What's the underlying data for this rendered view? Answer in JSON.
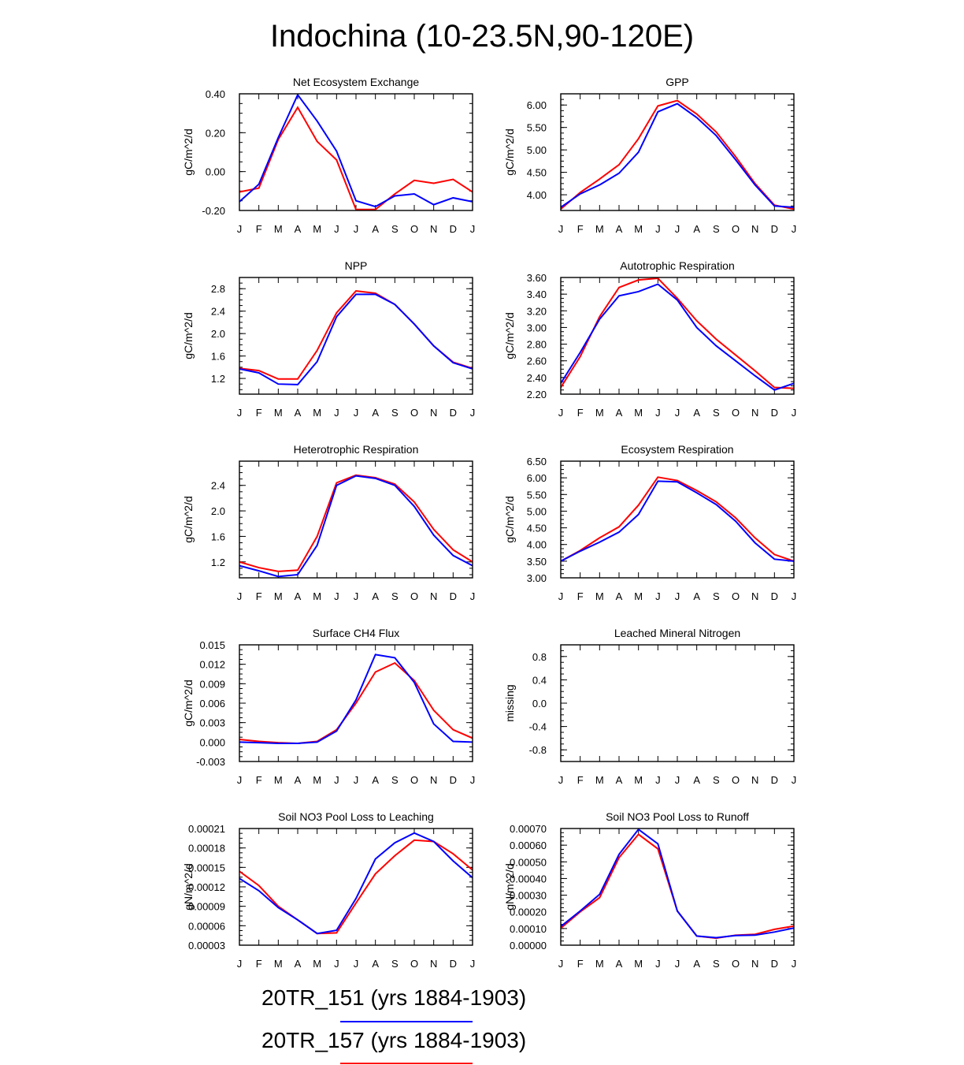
{
  "figure_title": "Indochina (10-23.5N,90-120E)",
  "colors": {
    "blue": "#0000ff",
    "red": "#ff0000"
  },
  "legend": [
    {
      "label": "20TR_151 (yrs 1884-1903)",
      "color": "#0000ff"
    },
    {
      "label": "20TR_157 (yrs 1884-1903)",
      "color": "#ff0000"
    }
  ],
  "chart_data": [
    {
      "type": "line",
      "title": "Net Ecosystem Exchange",
      "ylabel": "gC/m^2/d",
      "categories": [
        "J",
        "F",
        "M",
        "A",
        "M",
        "J",
        "J",
        "A",
        "S",
        "O",
        "N",
        "D",
        "J"
      ],
      "ylim": [
        -0.2,
        0.4
      ],
      "yticks": [
        "-0.20",
        "0.00",
        "0.20",
        "0.40"
      ],
      "series": [
        {
          "name": "20TR_151 (yrs 1884-1903)",
          "color": "#0000ff",
          "values": [
            -0.155,
            -0.065,
            0.175,
            0.395,
            0.26,
            0.105,
            -0.15,
            -0.18,
            -0.125,
            -0.115,
            -0.17,
            -0.135,
            -0.155
          ]
        },
        {
          "name": "20TR_157 (yrs 1884-1903)",
          "color": "#ff0000",
          "values": [
            -0.105,
            -0.085,
            0.165,
            0.33,
            0.155,
            0.06,
            -0.195,
            -0.195,
            -0.115,
            -0.045,
            -0.06,
            -0.04,
            -0.105
          ]
        }
      ]
    },
    {
      "type": "line",
      "title": "GPP",
      "ylabel": "gC/m^2/d",
      "categories": [
        "J",
        "F",
        "M",
        "A",
        "M",
        "J",
        "J",
        "A",
        "S",
        "O",
        "N",
        "D",
        "J"
      ],
      "ylim": [
        3.65,
        6.25
      ],
      "yticks": [
        "4.00",
        "4.50",
        "5.00",
        "5.50",
        "6.00"
      ],
      "series": [
        {
          "name": "20TR_151 (yrs 1884-1903)",
          "color": "#0000ff",
          "values": [
            3.72,
            4.02,
            4.22,
            4.48,
            4.95,
            5.85,
            6.03,
            5.72,
            5.32,
            4.78,
            4.22,
            3.75,
            3.72
          ]
        },
        {
          "name": "20TR_157 (yrs 1884-1903)",
          "color": "#ff0000",
          "values": [
            3.68,
            4.05,
            4.35,
            4.67,
            5.25,
            5.98,
            6.1,
            5.8,
            5.4,
            4.85,
            4.25,
            3.77,
            3.68
          ]
        }
      ]
    },
    {
      "type": "line",
      "title": "NPP",
      "ylabel": "gC/m^2/d",
      "categories": [
        "J",
        "F",
        "M",
        "A",
        "M",
        "J",
        "J",
        "A",
        "S",
        "O",
        "N",
        "D",
        "J"
      ],
      "ylim": [
        0.92,
        3.0
      ],
      "yticks": [
        "1.2",
        "1.6",
        "2.0",
        "2.4",
        "2.8"
      ],
      "series": [
        {
          "name": "20TR_151 (yrs 1884-1903)",
          "color": "#0000ff",
          "values": [
            1.37,
            1.3,
            1.1,
            1.09,
            1.5,
            2.3,
            2.7,
            2.7,
            2.52,
            2.17,
            1.78,
            1.48,
            1.37
          ]
        },
        {
          "name": "20TR_157 (yrs 1884-1903)",
          "color": "#ff0000",
          "values": [
            1.38,
            1.34,
            1.19,
            1.19,
            1.7,
            2.37,
            2.76,
            2.72,
            2.52,
            2.17,
            1.78,
            1.49,
            1.38
          ]
        }
      ]
    },
    {
      "type": "line",
      "title": "Autotrophic Respiration",
      "ylabel": "gC/m^2/d",
      "categories": [
        "J",
        "F",
        "M",
        "A",
        "M",
        "J",
        "J",
        "A",
        "S",
        "O",
        "N",
        "D",
        "J"
      ],
      "ylim": [
        2.2,
        3.6
      ],
      "yticks": [
        "2.20",
        "2.40",
        "2.60",
        "2.80",
        "3.00",
        "3.20",
        "3.40",
        "3.60"
      ],
      "series": [
        {
          "name": "20TR_151 (yrs 1884-1903)",
          "color": "#0000ff",
          "values": [
            2.33,
            2.7,
            3.1,
            3.38,
            3.43,
            3.52,
            3.33,
            3.0,
            2.78,
            2.6,
            2.42,
            2.25,
            2.33
          ]
        },
        {
          "name": "20TR_157 (yrs 1884-1903)",
          "color": "#ff0000",
          "values": [
            2.28,
            2.65,
            3.13,
            3.48,
            3.57,
            3.59,
            3.35,
            3.08,
            2.86,
            2.67,
            2.48,
            2.28,
            2.27
          ]
        }
      ]
    },
    {
      "type": "line",
      "title": "Heterotrophic Respiration",
      "ylabel": "gC/m^2/d",
      "categories": [
        "J",
        "F",
        "M",
        "A",
        "M",
        "J",
        "J",
        "A",
        "S",
        "O",
        "N",
        "D",
        "J"
      ],
      "ylim": [
        0.95,
        2.78
      ],
      "yticks": [
        "1.2",
        "1.6",
        "2.0",
        "2.4"
      ],
      "series": [
        {
          "name": "20TR_151 (yrs 1884-1903)",
          "color": "#0000ff",
          "values": [
            1.14,
            1.06,
            0.97,
            1.0,
            1.46,
            2.4,
            2.55,
            2.51,
            2.4,
            2.07,
            1.62,
            1.3,
            1.14
          ]
        },
        {
          "name": "20TR_157 (yrs 1884-1903)",
          "color": "#ff0000",
          "values": [
            1.2,
            1.11,
            1.05,
            1.07,
            1.6,
            2.44,
            2.56,
            2.52,
            2.42,
            2.14,
            1.71,
            1.39,
            1.2
          ]
        }
      ]
    },
    {
      "type": "line",
      "title": "Ecosystem Respiration",
      "ylabel": "gC/m^2/d",
      "categories": [
        "J",
        "F",
        "M",
        "A",
        "M",
        "J",
        "J",
        "A",
        "S",
        "O",
        "N",
        "D",
        "J"
      ],
      "ylim": [
        3.0,
        6.5
      ],
      "yticks": [
        "3.00",
        "3.50",
        "4.00",
        "4.50",
        "5.00",
        "5.50",
        "6.00",
        "6.50"
      ],
      "series": [
        {
          "name": "20TR_151 (yrs 1884-1903)",
          "color": "#0000ff",
          "values": [
            3.5,
            3.8,
            4.07,
            4.37,
            4.9,
            5.9,
            5.88,
            5.55,
            5.2,
            4.7,
            4.05,
            3.56,
            3.5
          ]
        },
        {
          "name": "20TR_157 (yrs 1884-1903)",
          "color": "#ff0000",
          "values": [
            3.5,
            3.82,
            4.2,
            4.53,
            5.18,
            6.02,
            5.92,
            5.62,
            5.28,
            4.8,
            4.2,
            3.7,
            3.5
          ]
        }
      ]
    },
    {
      "type": "line",
      "title": "Surface CH4 Flux",
      "ylabel": "gC/m^2/d",
      "categories": [
        "J",
        "F",
        "M",
        "A",
        "M",
        "J",
        "J",
        "A",
        "S",
        "O",
        "N",
        "D",
        "J"
      ],
      "ylim": [
        -0.003,
        0.015
      ],
      "yticks": [
        "-0.003",
        "0.000",
        "0.003",
        "0.006",
        "0.009",
        "0.012",
        "0.015"
      ],
      "series": [
        {
          "name": "20TR_151 (yrs 1884-1903)",
          "color": "#0000ff",
          "values": [
            0.0,
            -0.0001,
            -0.0002,
            -0.0002,
            0.0,
            0.0017,
            0.0065,
            0.0135,
            0.013,
            0.0092,
            0.0028,
            0.0001,
            0.0
          ]
        },
        {
          "name": "20TR_157 (yrs 1884-1903)",
          "color": "#ff0000",
          "values": [
            0.0004,
            0.0001,
            -0.0001,
            -0.0002,
            0.0001,
            0.0019,
            0.006,
            0.0108,
            0.0122,
            0.0095,
            0.0049,
            0.0019,
            0.0006
          ]
        }
      ]
    },
    {
      "type": "line",
      "title": "Leached Mineral Nitrogen",
      "ylabel": "missing",
      "categories": [
        "J",
        "F",
        "M",
        "A",
        "M",
        "J",
        "J",
        "A",
        "S",
        "O",
        "N",
        "D",
        "J"
      ],
      "ylim": [
        -1.0,
        1.0
      ],
      "yticks": [
        "-0.8",
        "-0.4",
        "0.0",
        "0.4",
        "0.8"
      ],
      "series": []
    },
    {
      "type": "line",
      "title": "Soil NO3 Pool Loss to Leaching",
      "ylabel": "gN/m^2/d",
      "categories": [
        "J",
        "F",
        "M",
        "A",
        "M",
        "J",
        "J",
        "A",
        "S",
        "O",
        "N",
        "D",
        "J"
      ],
      "ylim": [
        3e-05,
        0.00021
      ],
      "yticks": [
        "0.00003",
        "0.00006",
        "0.00009",
        "0.00012",
        "0.00015",
        "0.00018",
        "0.00021"
      ],
      "series": [
        {
          "name": "20TR_151 (yrs 1884-1903)",
          "color": "#0000ff",
          "values": [
            0.000133,
            0.000114,
            8.8e-05,
            6.9e-05,
            4.8e-05,
            5.3e-05,
            0.000102,
            0.000163,
            0.000188,
            0.000203,
            0.00019,
            0.00016,
            0.000134
          ]
        },
        {
          "name": "20TR_157 (yrs 1884-1903)",
          "color": "#ff0000",
          "values": [
            0.000144,
            0.000122,
            9e-05,
            6.9e-05,
            4.8e-05,
            4.9e-05,
            9.5e-05,
            0.00014,
            0.000168,
            0.000192,
            0.00019,
            0.000171,
            0.000146
          ]
        }
      ]
    },
    {
      "type": "line",
      "title": "Soil NO3 Pool Loss to Runoff",
      "ylabel": "gN/m^2/d",
      "categories": [
        "J",
        "F",
        "M",
        "A",
        "M",
        "J",
        "J",
        "A",
        "S",
        "O",
        "N",
        "D",
        "J"
      ],
      "ylim": [
        0.0,
        0.0007
      ],
      "yticks": [
        "0.00000",
        "0.00010",
        "0.00020",
        "0.00030",
        "0.00040",
        "0.00050",
        "0.00060",
        "0.00070"
      ],
      "series": [
        {
          "name": "20TR_151 (yrs 1884-1903)",
          "color": "#0000ff",
          "values": [
            0.000112,
            0.000205,
            0.000305,
            0.000545,
            0.000695,
            0.000608,
            0.000205,
            5.5e-05,
            4.5e-05,
            5.8e-05,
            6e-05,
            7.9e-05,
            0.000103
          ]
        },
        {
          "name": "20TR_157 (yrs 1884-1903)",
          "color": "#ff0000",
          "values": [
            0.000102,
            0.0002,
            0.000285,
            0.000525,
            0.000665,
            0.000578,
            0.000205,
            5.5e-05,
            4.2e-05,
            6e-05,
            6.5e-05,
            9.5e-05,
            0.000115
          ]
        }
      ]
    }
  ]
}
